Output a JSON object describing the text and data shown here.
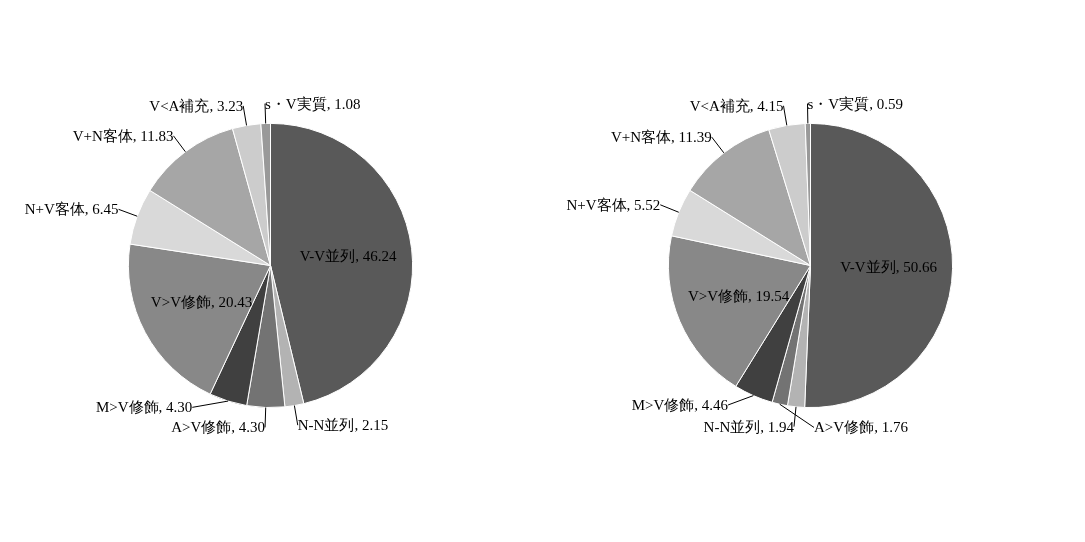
{
  "chart_data": [
    {
      "type": "pie",
      "categories": [
        "V-V並列",
        "N-N並列",
        "A>V修飾",
        "M>V修飾",
        "V>V修飾",
        "N+V客体",
        "V+N客体",
        "V<A補充",
        "s・V実質"
      ],
      "values": [
        46.24,
        2.15,
        4.3,
        4.3,
        20.43,
        6.45,
        11.83,
        3.23,
        1.08
      ],
      "value_labels": [
        "46.24",
        "2.15",
        "4.30",
        "4.30",
        "20.43",
        "6.45",
        "11.83",
        "3.23",
        "1.08"
      ],
      "colors": [
        "#595959",
        "#b3b3b3",
        "#737373",
        "#404040",
        "#888888",
        "#d9d9d9",
        "#a6a6a6",
        "#cccccc",
        "#999999"
      ]
    },
    {
      "type": "pie",
      "categories": [
        "V-V並列",
        "N-N並列",
        "A>V修飾",
        "M>V修飾",
        "V>V修飾",
        "N+V客体",
        "V+N客体",
        "V<A補充",
        "s・V実質"
      ],
      "values": [
        50.66,
        1.94,
        1.76,
        4.46,
        19.54,
        5.52,
        11.39,
        4.15,
        0.59
      ],
      "value_labels": [
        "50.66",
        "1.94",
        "1.76",
        "4.46",
        "19.54",
        "5.52",
        "11.39",
        "4.15",
        "0.59"
      ],
      "colors": [
        "#595959",
        "#b3b3b3",
        "#737373",
        "#404040",
        "#888888",
        "#d9d9d9",
        "#a6a6a6",
        "#cccccc",
        "#999999"
      ]
    }
  ]
}
